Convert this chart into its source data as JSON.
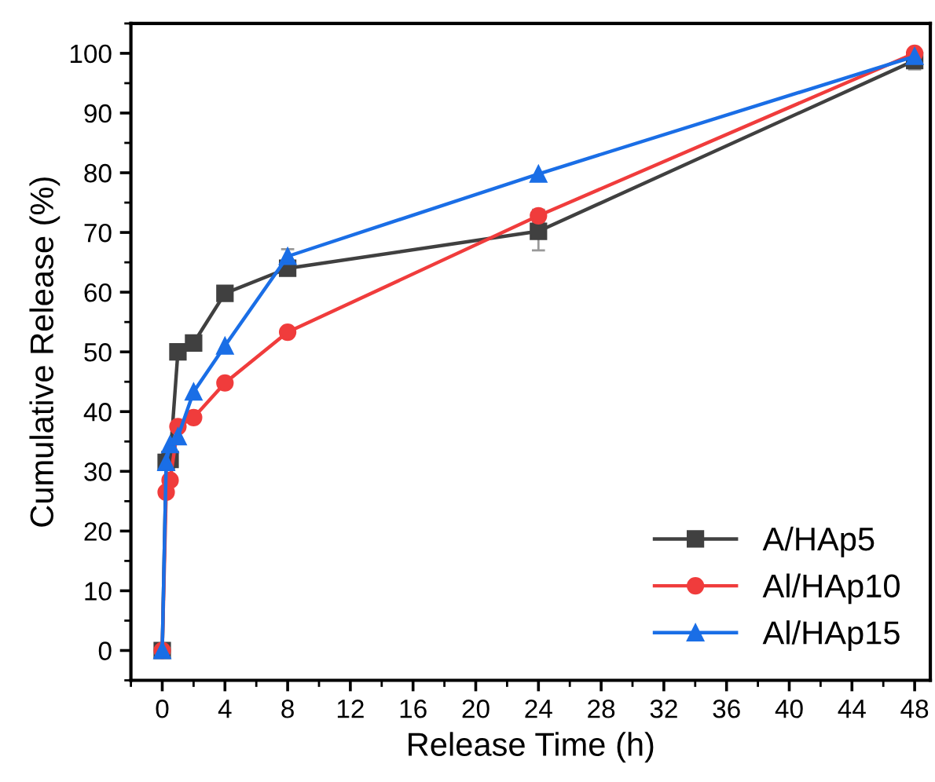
{
  "chart_data": {
    "type": "line",
    "xlabel": "Release Time (h)",
    "ylabel": "Cumulative Release (%)",
    "xlim": [
      -2,
      49
    ],
    "ylim": [
      -5,
      105
    ],
    "xticks": [
      0,
      4,
      8,
      12,
      16,
      20,
      24,
      28,
      32,
      36,
      40,
      44,
      48
    ],
    "yticks": [
      0,
      10,
      20,
      30,
      40,
      50,
      60,
      70,
      80,
      90,
      100
    ],
    "x": [
      0,
      0.25,
      0.5,
      1,
      2,
      4,
      8,
      24,
      48
    ],
    "legend": "bottom right",
    "grid": false,
    "line_style": "solid",
    "series": [
      {
        "name": "A/HAp5",
        "color": "#404040",
        "marker": "square",
        "values": [
          0,
          31.5,
          32,
          50,
          51.5,
          59.8,
          64,
          70.2,
          98.8
        ],
        "errors": [
          null,
          null,
          null,
          null,
          null,
          null,
          null,
          3.2,
          1.5
        ]
      },
      {
        "name": "Al/HAp10",
        "color": "#f03c3c",
        "marker": "circle",
        "values": [
          0,
          26.5,
          28.5,
          37.5,
          39,
          44.8,
          53.3,
          72.8,
          100
        ],
        "errors": [
          null,
          null,
          null,
          null,
          null,
          null,
          null,
          1,
          null
        ]
      },
      {
        "name": "Al/HAp15",
        "color": "#1a6ee6",
        "marker": "triangle",
        "values": [
          0,
          31.5,
          34.5,
          35.8,
          43.3,
          51,
          66,
          79.8,
          99.5
        ],
        "errors": [
          null,
          null,
          null,
          null,
          null,
          null,
          1.2,
          null,
          null
        ]
      }
    ]
  }
}
